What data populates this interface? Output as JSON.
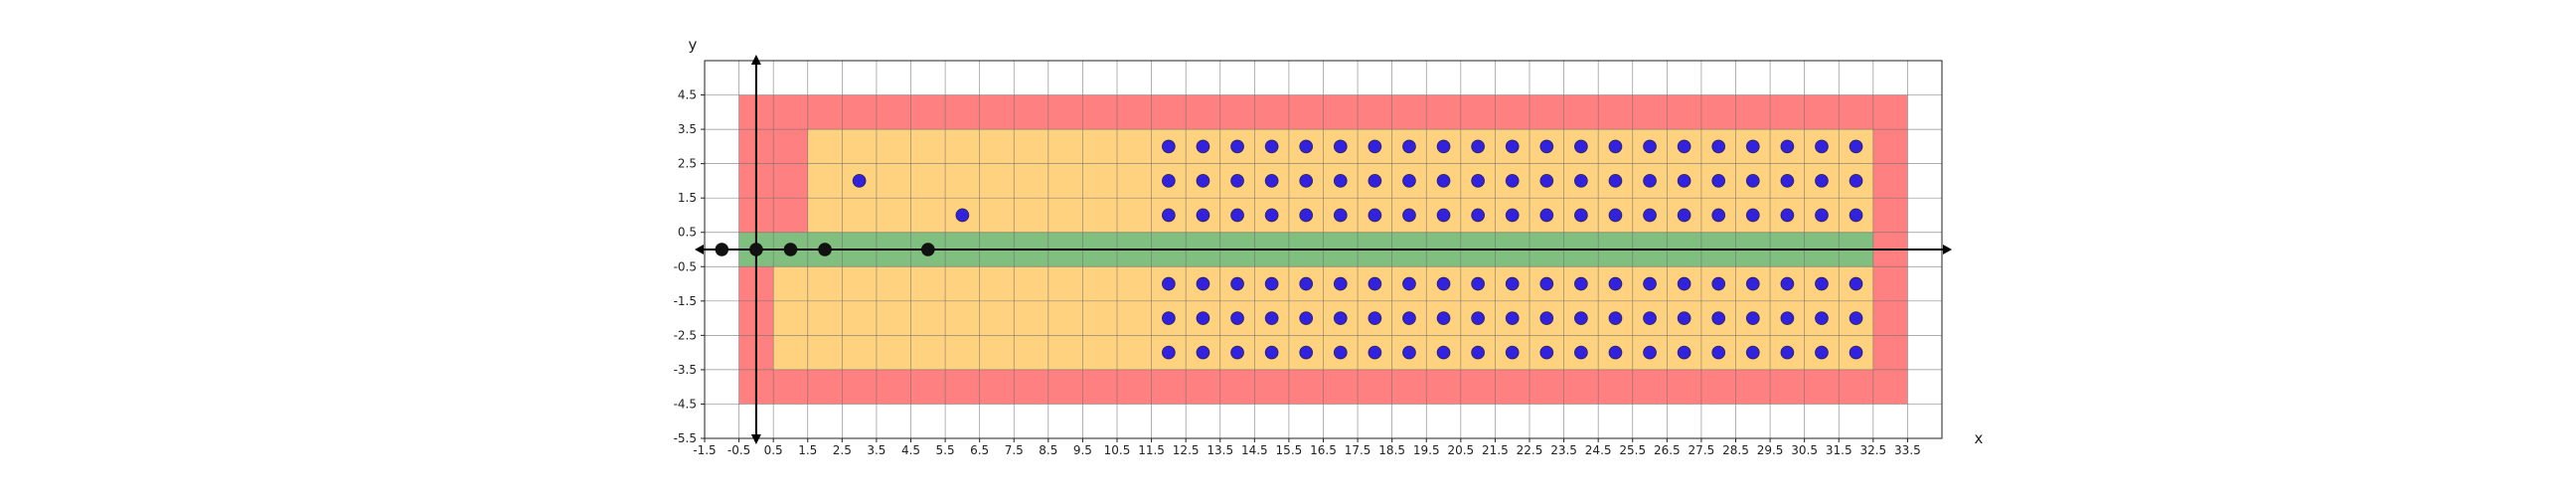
{
  "chart_data": {
    "type": "scatter",
    "title": "",
    "xlabel": "x",
    "ylabel": "y",
    "xlim": [
      -1.5,
      34.5
    ],
    "ylim": [
      -5.5,
      5.5
    ],
    "grid": true,
    "xticks": [
      -1.5,
      -0.5,
      0.5,
      1.5,
      2.5,
      3.5,
      4.5,
      5.5,
      6.5,
      7.5,
      8.5,
      9.5,
      10.5,
      11.5,
      12.5,
      13.5,
      14.5,
      15.5,
      16.5,
      17.5,
      18.5,
      19.5,
      20.5,
      21.5,
      22.5,
      23.5,
      24.5,
      25.5,
      26.5,
      27.5,
      28.5,
      29.5,
      30.5,
      31.5,
      32.5,
      33.5
    ],
    "xtick_labels": [
      "-1.5",
      "-0.5",
      "0.5",
      "1.5",
      "2.5",
      "3.5",
      "4.5",
      "5.5",
      "6.5",
      "7.5",
      "8.5",
      "9.5",
      "10.5",
      "11.5",
      "12.5",
      "13.5",
      "14.5",
      "15.5",
      "16.5",
      "17.5",
      "18.5",
      "19.5",
      "20.5",
      "21.5",
      "22.5",
      "23.5",
      "24.5",
      "25.5",
      "26.5",
      "27.5",
      "28.5",
      "29.5",
      "30.5",
      "31.5",
      "32.5",
      "33.5"
    ],
    "yticks": [
      4.5,
      3.5,
      2.5,
      1.5,
      0.5,
      -0.5,
      -1.5,
      -2.5,
      -3.5,
      -4.5,
      -5.5
    ],
    "ytick_labels": [
      "4.5",
      "3.5",
      "2.5",
      "1.5",
      "0.5",
      "-0.5",
      "-1.5",
      "-2.5",
      "-3.5",
      "-4.5",
      "-5.5"
    ],
    "regions": [
      {
        "name": "red",
        "color": "#ff8080",
        "x": [
          -0.5,
          33.5
        ],
        "y": [
          -4.5,
          4.5
        ]
      },
      {
        "name": "orange-lower",
        "color": "#ffd280",
        "x": [
          0.5,
          32.5
        ],
        "y": [
          -3.5,
          -0.5
        ]
      },
      {
        "name": "orange-upper",
        "color": "#ffd280",
        "x": [
          1.5,
          32.5
        ],
        "y": [
          0.5,
          3.5
        ]
      },
      {
        "name": "green",
        "color": "#80bf80",
        "x": [
          -0.5,
          32.5
        ],
        "y": [
          -0.5,
          0.5
        ]
      }
    ],
    "series": [
      {
        "name": "blue-grid",
        "color": "#3322dd",
        "x_range": [
          12,
          32
        ],
        "y_values": [
          3,
          2,
          1,
          -1,
          -2,
          -3
        ]
      },
      {
        "name": "blue-extra",
        "color": "#3322dd",
        "points": [
          [
            3,
            2
          ],
          [
            6,
            1
          ]
        ]
      },
      {
        "name": "black",
        "color": "#111111",
        "points": [
          [
            -1,
            0
          ],
          [
            0,
            0
          ],
          [
            1,
            0
          ],
          [
            2,
            0
          ],
          [
            5,
            0
          ]
        ]
      }
    ]
  }
}
